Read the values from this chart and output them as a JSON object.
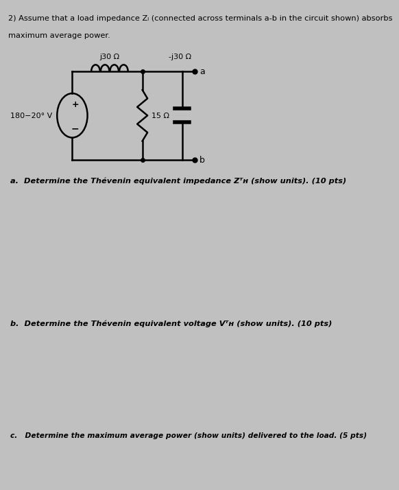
{
  "bg_color": "#c0c0c0",
  "title_line1": "2) Assume that a load impedance Zₗ (connected across terminals a-b in the circuit shown) absorbs",
  "title_line2": "maximum average power.",
  "inductor_label": "j30 Ω",
  "capacitor_label": "-j30 Ω",
  "resistor_label": "15 Ω",
  "source_label": "180−20° V",
  "terminal_a": "a",
  "terminal_b": "b",
  "question_a": "a.  Determine the Thévenin equivalent impedance Zᵀʜ (show units). (10 pts)",
  "question_b": "b.  Determine the Thévenin equivalent voltage Vᵀʜ (show units). (10 pts)",
  "question_c": "c.   Determine the maximum average power (show units) delivered to the load. (5 pts)"
}
